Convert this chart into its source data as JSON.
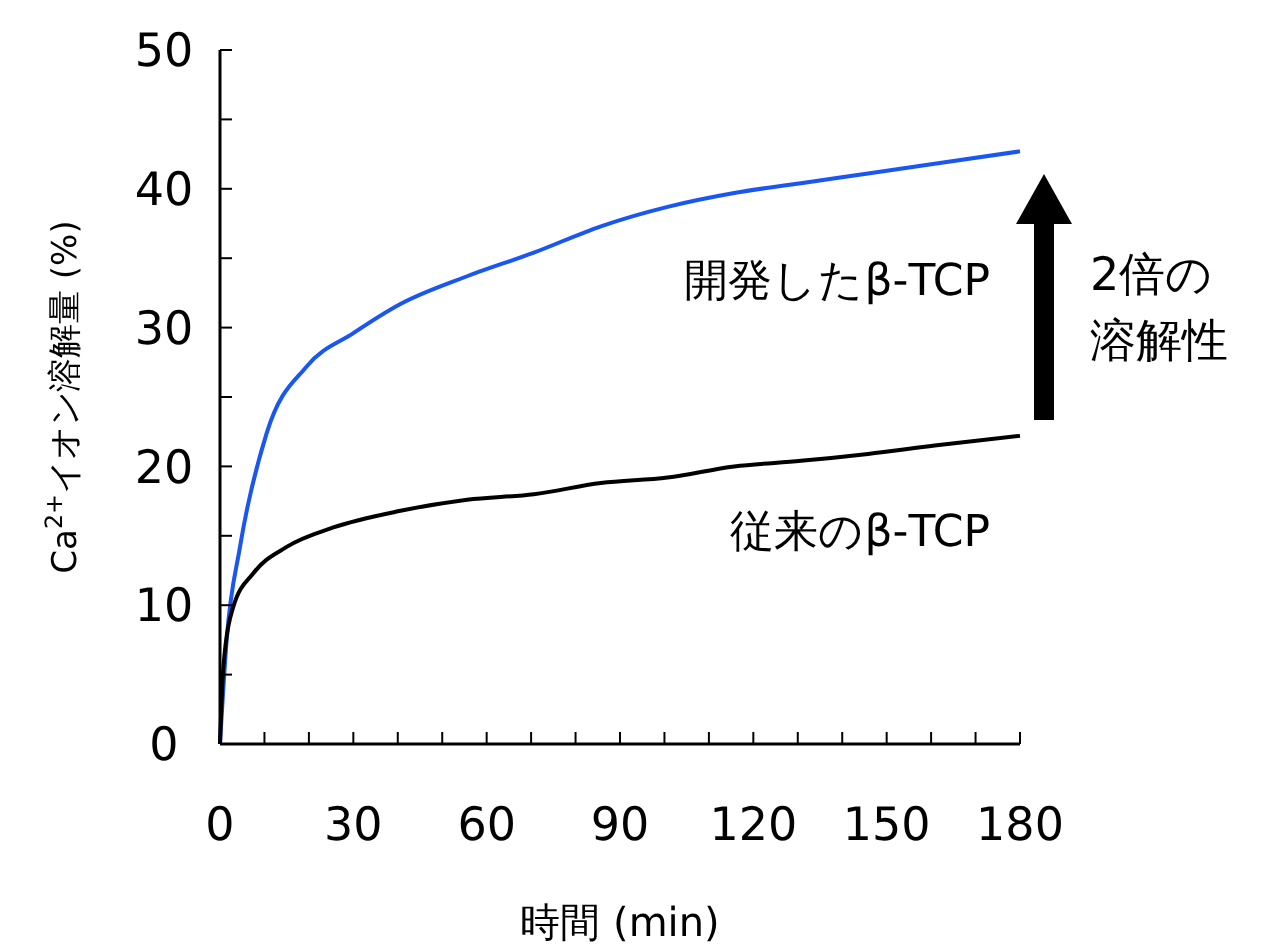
{
  "chart_data": {
    "type": "line",
    "xlabel": "時間 (min)",
    "ylabel": "Ca$^{2+}$イオン溶解量 (%)",
    "xlim": [
      0,
      180
    ],
    "ylim": [
      0,
      50
    ],
    "xticks": [
      0,
      {
        "value": 10,
        "label": null
      },
      {
        "value": 20,
        "label": null
      },
      30,
      {
        "value": 40,
        "label": null
      },
      {
        "value": 50,
        "label": null
      },
      60,
      {
        "value": 70,
        "label": null
      },
      {
        "value": 80,
        "label": null
      },
      90,
      {
        "value": 100,
        "label": null
      },
      {
        "value": 110,
        "label": null
      },
      120,
      {
        "value": 130,
        "label": null
      },
      {
        "value": 140,
        "label": null
      },
      150,
      {
        "value": 160,
        "label": null
      },
      {
        "value": 170,
        "label": null
      },
      180
    ],
    "yticks": [
      0,
      {
        "value": 5,
        "label": null
      },
      10,
      {
        "value": 15,
        "label": null
      },
      20,
      {
        "value": 25,
        "label": null
      },
      30,
      {
        "value": 35,
        "label": null
      },
      40,
      {
        "value": 45,
        "label": null
      },
      50
    ],
    "grid": false,
    "marker": "none",
    "line_style": "solid",
    "series": [
      {
        "name": "開発したβ-TCP",
        "color": "#1a56f0",
        "x": [
          0,
          1.5,
          4.5,
          10.5,
          19.5,
          30,
          40.6,
          55.6,
          70.6,
          85.7,
          100.7,
          115.7,
          130.7,
          145.8,
          160.8,
          180
        ],
        "values": [
          0,
          7.5,
          14.2,
          22.4,
          27.2,
          29.6,
          31.7,
          33.7,
          35.4,
          37.3,
          38.7,
          39.7,
          40.4,
          41.1,
          41.8,
          42.7
        ]
      },
      {
        "name": "従来のβ-TCP",
        "color": "#000000",
        "x": [
          0,
          0.75,
          3,
          7.5,
          15,
          25.5,
          40.6,
          55.6,
          70.6,
          85.7,
          100.7,
          115.7,
          130.7,
          145.8,
          160.8,
          180
        ],
        "values": [
          0,
          5.5,
          9.9,
          12.3,
          14.2,
          15.6,
          16.8,
          17.6,
          18.0,
          18.8,
          19.2,
          20.0,
          20.4,
          20.9,
          21.5,
          22.2
        ]
      }
    ],
    "annotations": [
      "2倍の溶解性"
    ]
  }
}
